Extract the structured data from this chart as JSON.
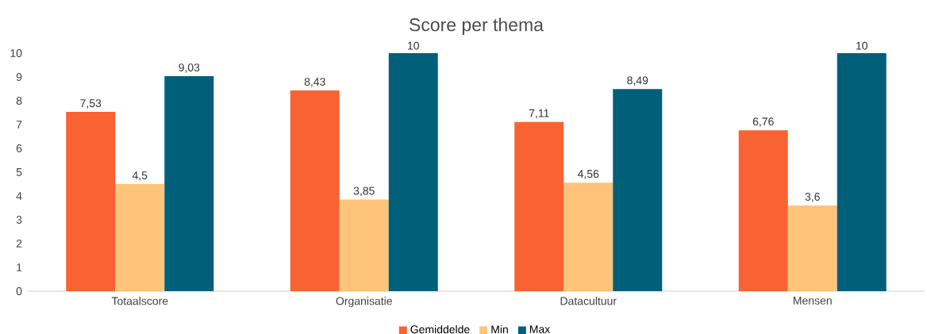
{
  "chart_data": {
    "type": "bar",
    "title": "Score per thema",
    "categories": [
      "Totaalscore",
      "Organisatie",
      "Datacultuur",
      "Mensen"
    ],
    "series": [
      {
        "name": "Gemiddelde",
        "color": "#f96232",
        "values": [
          7.53,
          8.43,
          7.11,
          6.76
        ],
        "value_labels": [
          "7,53",
          "8,43",
          "7,11",
          "6,76"
        ]
      },
      {
        "name": "Min",
        "color": "#fdc47a",
        "values": [
          4.5,
          3.85,
          4.56,
          3.6
        ],
        "value_labels": [
          "4,5",
          "3,85",
          "4,56",
          "3,6"
        ]
      },
      {
        "name": "Max",
        "color": "#00607a",
        "values": [
          9.03,
          10,
          8.49,
          10
        ],
        "value_labels": [
          "9,03",
          "10",
          "8,49",
          "10"
        ]
      }
    ],
    "ylim": [
      0,
      10
    ],
    "yticks": [
      0,
      1,
      2,
      3,
      4,
      5,
      6,
      7,
      8,
      9,
      10
    ],
    "legend": "bottom"
  }
}
